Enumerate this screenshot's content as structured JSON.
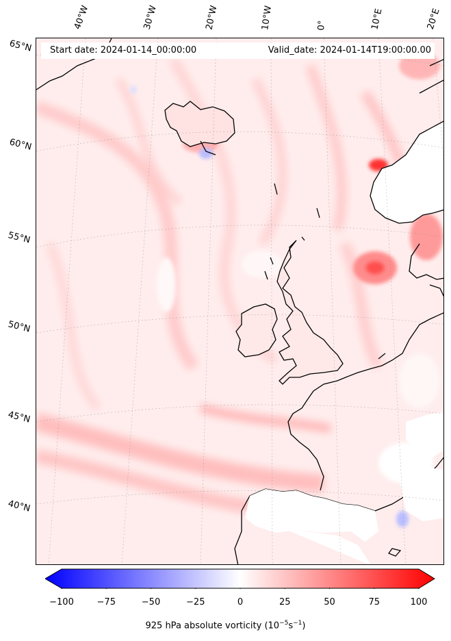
{
  "header": {
    "start_date": "Start date: 2024-01-14_00:00:00",
    "valid_date": "Valid_date: 2024-01-14T19:00:00.00"
  },
  "longitude_labels": [
    "40°W",
    "30°W",
    "20°W",
    "10°W",
    "0°",
    "10°E",
    "20°E"
  ],
  "latitude_labels": [
    "65°N",
    "60°N",
    "55°N",
    "50°N",
    "45°N",
    "40°N"
  ],
  "colorbar": {
    "ticks": [
      "−100",
      "−75",
      "−50",
      "−25",
      "0",
      "25",
      "50",
      "75",
      "100"
    ],
    "tick_values": [
      -100,
      -75,
      -50,
      -25,
      0,
      25,
      50,
      75,
      100
    ],
    "range": [
      -100,
      100
    ],
    "colormap": "bwr",
    "label_text": "925 hPa absolute vorticity (10",
    "label_exp1": "−5",
    "label_mid": "s",
    "label_exp2": "−1",
    "label_end": ")"
  },
  "colors": {
    "negative_max": "#0000ff",
    "neutral": "#ffffff",
    "positive_max": "#ff0000",
    "coastline": "#000000"
  }
}
